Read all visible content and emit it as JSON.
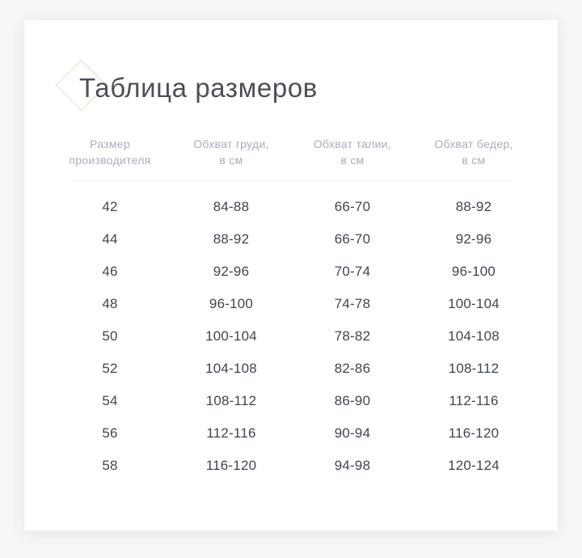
{
  "page": {
    "background_color": "#f6f6f7"
  },
  "card": {
    "background_color": "#ffffff"
  },
  "title": {
    "text": "Таблица размеров",
    "color": "#4b4f58",
    "diamond_accent_color": "#f2d9c7"
  },
  "table": {
    "header_color": "#a9adba",
    "body_text_color": "#40454f",
    "divider_color": "#ededf1",
    "columns": [
      {
        "line1": "Размер",
        "line2": "производителя"
      },
      {
        "line1": "Обхват груди,",
        "line2": "в см"
      },
      {
        "line1": "Обхват талии,",
        "line2": "в см"
      },
      {
        "line1": "Обхват бедер,",
        "line2": "в см"
      }
    ],
    "rows": [
      [
        "42",
        "84-88",
        "66-70",
        "88-92"
      ],
      [
        "44",
        "88-92",
        "66-70",
        "92-96"
      ],
      [
        "46",
        "92-96",
        "70-74",
        "96-100"
      ],
      [
        "48",
        "96-100",
        "74-78",
        "100-104"
      ],
      [
        "50",
        "100-104",
        "78-82",
        "104-108"
      ],
      [
        "52",
        "104-108",
        "82-86",
        "108-112"
      ],
      [
        "54",
        "108-112",
        "86-90",
        "112-116"
      ],
      [
        "56",
        "112-116",
        "90-94",
        "116-120"
      ],
      [
        "58",
        "116-120",
        "94-98",
        "120-124"
      ]
    ]
  }
}
